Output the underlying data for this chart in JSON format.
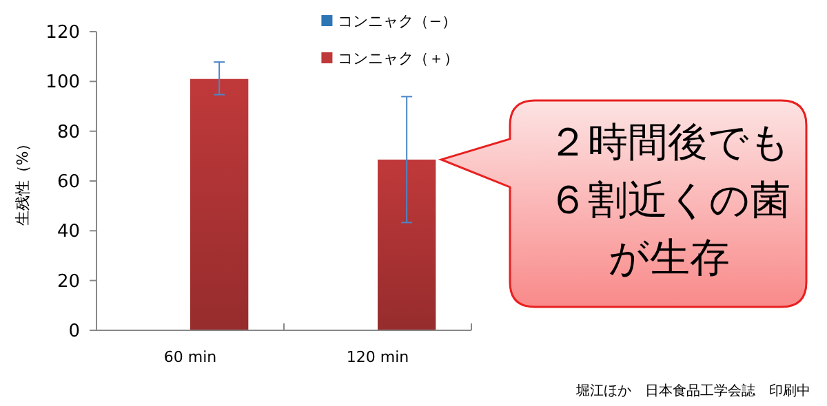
{
  "chart_data": {
    "type": "bar",
    "ylabel": "生残性（%）",
    "categories": [
      "60 min",
      "120 min"
    ],
    "series": [
      {
        "name": "コンニャク（−）",
        "color": "#2e75b6",
        "values": [
          null,
          null
        ]
      },
      {
        "name": "コンニャク（＋）",
        "color": "#c0393a",
        "values": [
          101,
          68.6
        ],
        "errors": [
          [
            94.7,
            107.8
          ],
          [
            43.3,
            93.9
          ]
        ]
      }
    ],
    "ylim": [
      0,
      120
    ],
    "yticks": [
      0,
      20,
      40,
      60,
      80,
      100,
      120
    ],
    "grid": false,
    "legend": "top",
    "annotations": [
      "２時間後でも６割近くの菌が生存",
      "堀江ほか　日本食品工学会誌　印刷中"
    ]
  }
}
